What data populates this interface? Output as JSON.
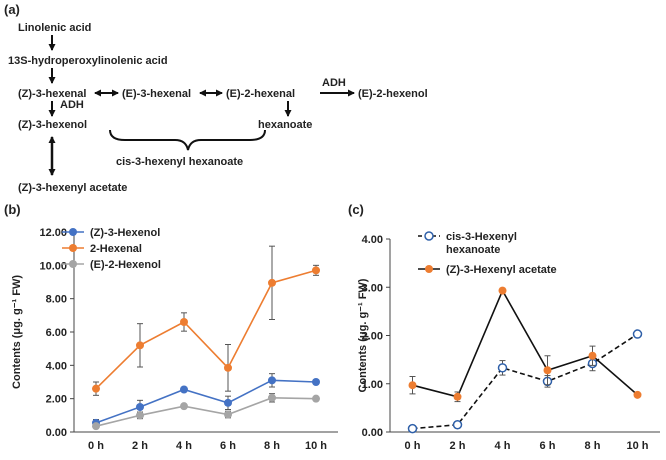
{
  "panel_labels": {
    "a": "(a)",
    "b": "(b)",
    "c": "(c)"
  },
  "pathway": {
    "linolenic": "Linolenic acid",
    "hydroperoxy": "13S-hydroperoxylinolenic acid",
    "z3hexenal": "(Z)-3-hexenal",
    "e3hexenal": "(E)-3-hexenal",
    "e2hexenal": "(E)-2-hexenal",
    "e2hexenol": "(E)-2-hexenol",
    "z3hexenol": "(Z)-3-hexenol",
    "hexanoate": "hexanoate",
    "cis3hexanoate": "cis-3-hexenyl hexanoate",
    "acetate": "(Z)-3-hexenyl acetate",
    "adh1": "ADH",
    "adh2": "ADH"
  },
  "chart_data": [
    {
      "type": "line",
      "panel": "(b)",
      "categories": [
        "0 h",
        "2 h",
        "4 h",
        "6 h",
        "8 h",
        "10 h"
      ],
      "ylabel": "Contents (μg. g⁻¹ FW)",
      "ylim": [
        0,
        12
      ],
      "yticks": [
        "0.00",
        "2.00",
        "4.00",
        "6.00",
        "8.00",
        "10.00",
        "12.00"
      ],
      "legend_position": "top-left",
      "series": [
        {
          "name": "(Z)-3-Hexenol",
          "color": "#4472c4",
          "values": [
            0.55,
            1.5,
            2.55,
            1.75,
            3.1,
            3.0
          ],
          "errors": [
            0.2,
            0.4,
            0.1,
            0.4,
            0.4,
            0.1
          ]
        },
        {
          "name": "2-Hexenal",
          "color": "#ed7d31",
          "values": [
            2.6,
            5.2,
            6.6,
            3.85,
            8.95,
            9.7
          ],
          "errors": [
            0.4,
            1.3,
            0.55,
            1.4,
            2.2,
            0.3
          ]
        },
        {
          "name": "(E)-2-Hexenol",
          "color": "#a5a5a5",
          "values": [
            0.35,
            1.0,
            1.55,
            1.05,
            2.05,
            2.0
          ],
          "errors": [
            0.1,
            0.2,
            0.1,
            0.2,
            0.25,
            0.1
          ]
        }
      ]
    },
    {
      "type": "line",
      "panel": "(c)",
      "categories": [
        "0 h",
        "2 h",
        "4 h",
        "6 h",
        "8 h",
        "10 h"
      ],
      "ylabel": "Contents (μg. g⁻¹ FW)",
      "ylim": [
        0,
        4
      ],
      "yticks": [
        "0.00",
        "1.00",
        "2.00",
        "3.00",
        "4.00"
      ],
      "legend_position": "top-left",
      "series": [
        {
          "name": "cis-3-Hexenyl hexanoate",
          "legend_lines": [
            "cis-3-Hexenyl",
            "hexanoate"
          ],
          "color": "#2e5fa8",
          "dashed": true,
          "values": [
            0.07,
            0.15,
            1.33,
            1.05,
            1.42,
            2.03
          ],
          "errors": [
            0.02,
            0.02,
            0.15,
            0.12,
            0.15,
            0.03
          ]
        },
        {
          "name": "(Z)-3-Hexenyl acetate",
          "color": "#ed7d31",
          "values": [
            0.97,
            0.73,
            2.93,
            1.28,
            1.58,
            0.77
          ],
          "errors": [
            0.18,
            0.1,
            0.03,
            0.3,
            0.2,
            0.03
          ]
        }
      ]
    }
  ]
}
